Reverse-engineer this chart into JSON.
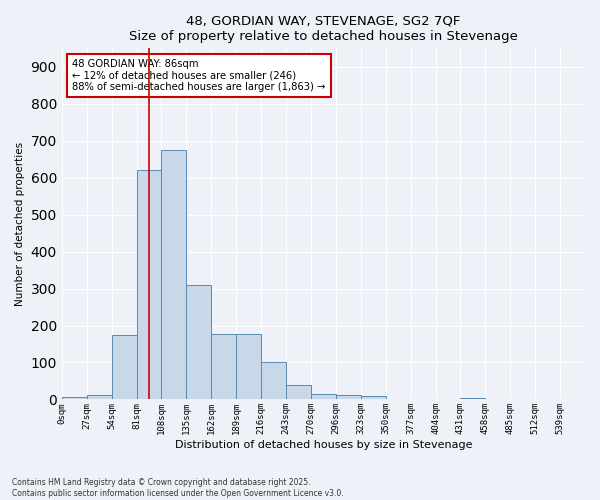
{
  "title1": "48, GORDIAN WAY, STEVENAGE, SG2 7QF",
  "title2": "Size of property relative to detached houses in Stevenage",
  "xlabel": "Distribution of detached houses by size in Stevenage",
  "ylabel": "Number of detached properties",
  "bins": [
    "0sqm",
    "27sqm",
    "54sqm",
    "81sqm",
    "108sqm",
    "135sqm",
    "162sqm",
    "189sqm",
    "216sqm",
    "243sqm",
    "270sqm",
    "296sqm",
    "323sqm",
    "350sqm",
    "377sqm",
    "404sqm",
    "431sqm",
    "458sqm",
    "485sqm",
    "512sqm",
    "539sqm"
  ],
  "bar_values": [
    7,
    13,
    173,
    620,
    675,
    310,
    178,
    178,
    100,
    38,
    14,
    11,
    10,
    0,
    0,
    0,
    5,
    0,
    0,
    0,
    0
  ],
  "bar_color": "#c8d8e8",
  "bar_edge_color": "#5a8ab0",
  "vline_x": 3.5,
  "vline_color": "#cc0000",
  "annotation_text": "48 GORDIAN WAY: 86sqm\n← 12% of detached houses are smaller (246)\n88% of semi-detached houses are larger (1,863) →",
  "annotation_box_color": "white",
  "annotation_box_edge": "#cc0000",
  "ylim": [
    0,
    950
  ],
  "yticks": [
    0,
    100,
    200,
    300,
    400,
    500,
    600,
    700,
    800,
    900
  ],
  "footer1": "Contains HM Land Registry data © Crown copyright and database right 2025.",
  "footer2": "Contains public sector information licensed under the Open Government Licence v3.0.",
  "bg_color": "#eef2f8",
  "grid_color": "#d8e4f0",
  "title_fontsize": 9.5,
  "annot_fontsize": 7.2
}
